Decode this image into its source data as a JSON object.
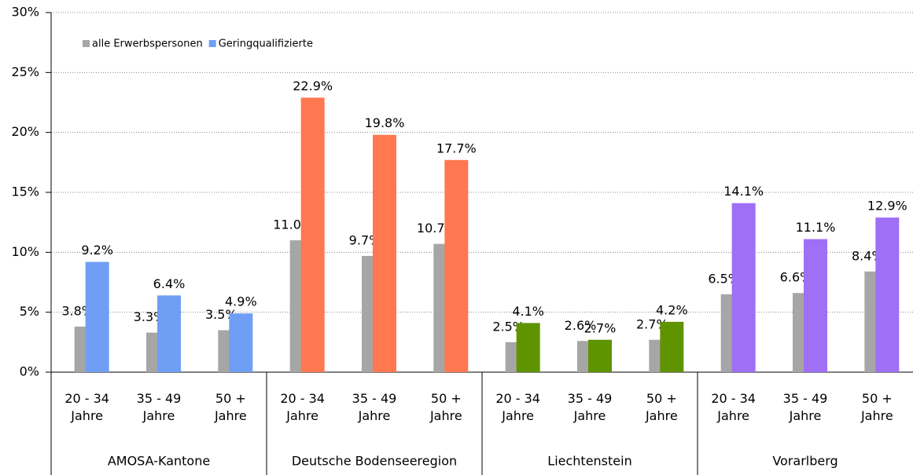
{
  "chart_data": {
    "type": "bar",
    "categories": [
      "20 - 34 Jahre",
      "35 - 49 Jahre",
      "50 + Jahre",
      "20 - 34 Jahre",
      "35 - 49 Jahre",
      "50 + Jahre",
      "20 - 34 Jahre",
      "35 - 49 Jahre",
      "50 + Jahre",
      "20 - 34 Jahre",
      "35 - 49 Jahre",
      "50 + Jahre"
    ],
    "groups": [
      {
        "label": "AMOSA-Kantone",
        "color": "#6f9ff5"
      },
      {
        "label": "Deutsche Bodenseeregion",
        "color": "#ff7850"
      },
      {
        "label": "Liechtenstein",
        "color": "#5f9400"
      },
      {
        "label": "Vorarlberg",
        "color": "#9f6ff5"
      }
    ],
    "series": [
      {
        "name": "alle Erwerbspersonen",
        "color": "#a6a6a6",
        "values": [
          3.8,
          3.3,
          3.5,
          11.0,
          9.7,
          10.7,
          2.5,
          2.6,
          2.7,
          6.5,
          6.6,
          8.4
        ],
        "value_labels": [
          "3.8%",
          "3.3%",
          "3.5%",
          "11.0%",
          "9.7%",
          "10.7%",
          "2.5%",
          "2.6%",
          "2.7%",
          "6.5%",
          "6.6%",
          "8.4%"
        ]
      },
      {
        "name": "Geringqualifizierte",
        "color": "#6f9ff5",
        "values": [
          9.2,
          6.4,
          4.9,
          22.9,
          19.8,
          17.7,
          4.1,
          2.7,
          4.2,
          14.1,
          11.1,
          12.9
        ],
        "value_labels": [
          "9.2%",
          "6.4%",
          "4.9%",
          "22.9%",
          "19.8%",
          "17.7%",
          "4.1%",
          "2.7%",
          "4.2%",
          "14.1%",
          "11.1%",
          "12.9%"
        ]
      }
    ],
    "ylim": [
      0,
      30
    ],
    "yticks": [
      {
        "value": 0,
        "label": "0%"
      },
      {
        "value": 5,
        "label": "5%"
      },
      {
        "value": 10,
        "label": "10%"
      },
      {
        "value": 15,
        "label": "15%"
      },
      {
        "value": 20,
        "label": "20%"
      },
      {
        "value": 25,
        "label": "25%"
      },
      {
        "value": 30,
        "label": "30%"
      }
    ],
    "grid": true,
    "legend": "top-left"
  }
}
